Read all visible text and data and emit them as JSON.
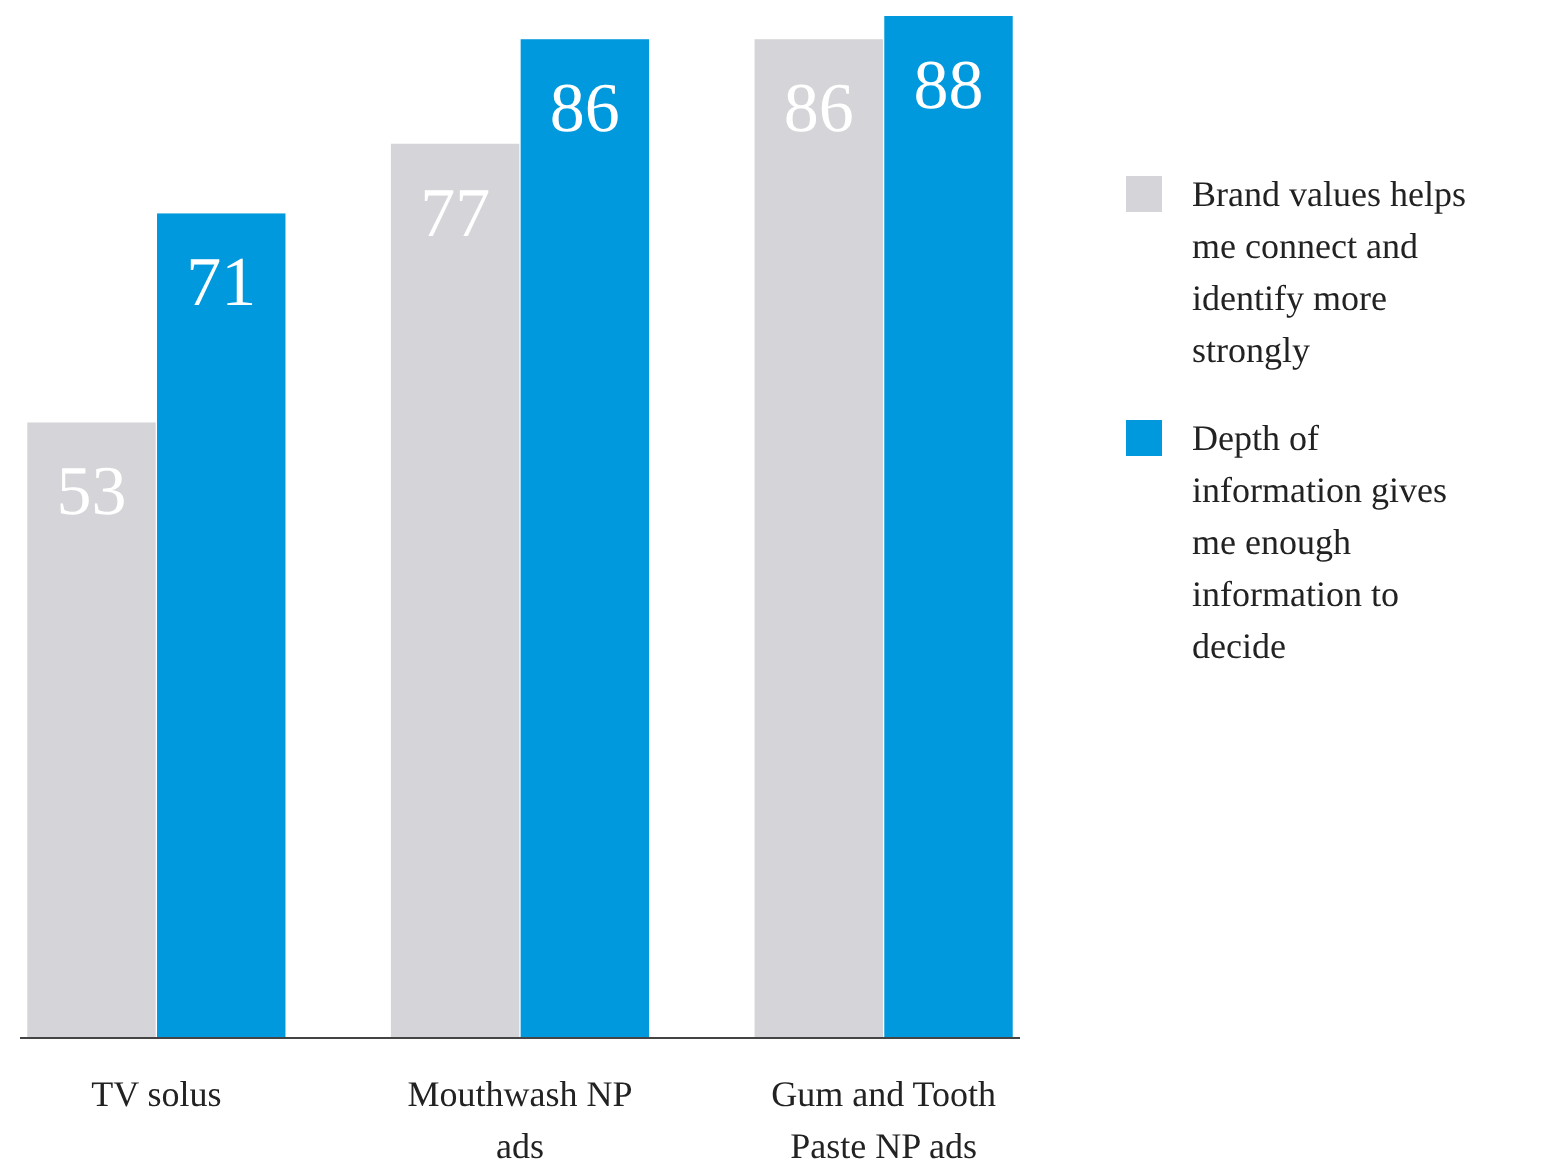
{
  "chart_data": {
    "type": "bar",
    "categories": [
      "TV solus",
      "Mouthwash NP ads",
      "Gum and Tooth Paste NP ads"
    ],
    "series": [
      {
        "name": "Brand values helps me connect and identify more strongly",
        "color": "#d5d5d9",
        "values": [
          53,
          77,
          86
        ]
      },
      {
        "name": "Depth of information gives me enough information to decide",
        "color": "#0099dd",
        "values": [
          71,
          86,
          88
        ]
      }
    ],
    "data_labels": true,
    "legend": "right"
  }
}
